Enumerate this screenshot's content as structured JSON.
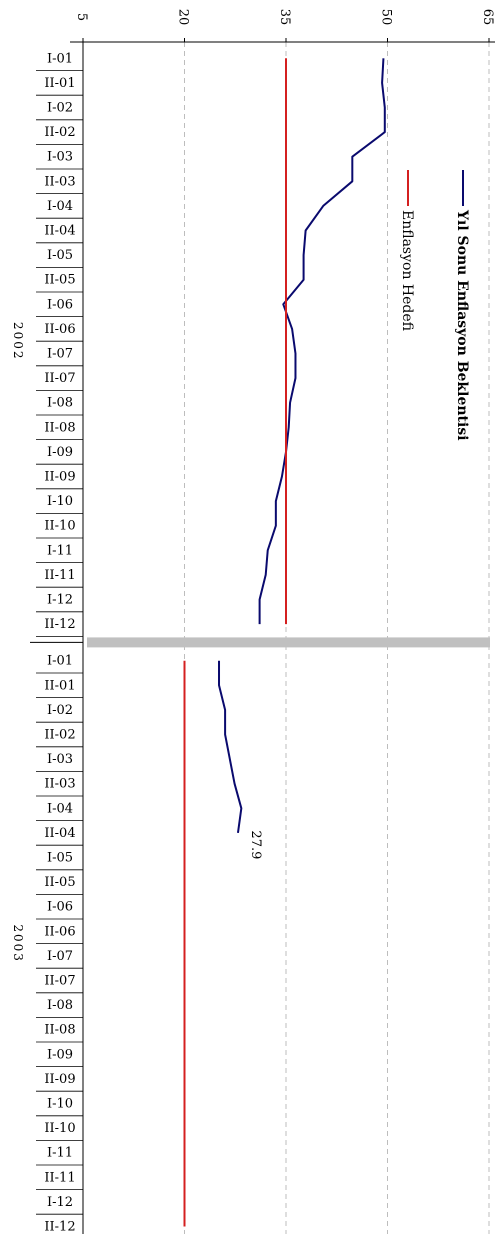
{
  "chart_data": {
    "type": "line",
    "title": "",
    "ylim": [
      5,
      65
    ],
    "y_ticks": [
      "5",
      "20",
      "35",
      "50",
      "65"
    ],
    "gridlines": "dashed",
    "legend_position": "top-right",
    "categories": [
      "I-01",
      "II-01",
      "I-02",
      "II-02",
      "I-03",
      "II-03",
      "I-04",
      "II-04",
      "I-05",
      "II-05",
      "I-06",
      "II-06",
      "I-07",
      "II-07",
      "I-08",
      "II-08",
      "I-09",
      "II-09",
      "I-10",
      "II-10",
      "I-11",
      "II-11",
      "I-12",
      "II-12",
      "I-01",
      "II-01",
      "I-02",
      "II-02",
      "I-03",
      "II-03",
      "I-04",
      "II-04",
      "I-05",
      "II-05",
      "I-06",
      "II-06",
      "I-07",
      "II-07",
      "I-08",
      "II-08",
      "I-09",
      "II-09",
      "I-10",
      "II-10",
      "I-11",
      "II-11",
      "I-12",
      "II-12"
    ],
    "groups": [
      {
        "label": "2002",
        "start": 0,
        "end": 23
      },
      {
        "label": "2003",
        "start": 24,
        "end": 47
      }
    ],
    "series": [
      {
        "name": "Yıl Sonu Enflasyon Beklentisi",
        "color": "#0a0a6e",
        "values": [
          49.4,
          49.2,
          49.6,
          49.6,
          44.8,
          44.8,
          40.5,
          37.9,
          37.6,
          37.6,
          34.6,
          35.9,
          36.4,
          36.4,
          35.6,
          35.4,
          35.0,
          34.4,
          33.5,
          33.5,
          32.3,
          32.0,
          31.1,
          31.1,
          25.1,
          25.1,
          26.0,
          26.0,
          26.7,
          27.4,
          28.4,
          27.9,
          null,
          null,
          null,
          null,
          null,
          null,
          null,
          null,
          null,
          null,
          null,
          null,
          null,
          null,
          null,
          null
        ]
      },
      {
        "name": "Enflasyon Hedefi",
        "color": "#d42020",
        "values": [
          35,
          35,
          35,
          35,
          35,
          35,
          35,
          35,
          35,
          35,
          35,
          35,
          35,
          35,
          35,
          35,
          35,
          35,
          35,
          35,
          35,
          35,
          35,
          35,
          20,
          20,
          20,
          20,
          20,
          20,
          20,
          20,
          20,
          20,
          20,
          20,
          20,
          20,
          20,
          20,
          20,
          20,
          20,
          20,
          20,
          20,
          20,
          20
        ]
      }
    ],
    "annotations": [
      {
        "text": "27.9",
        "category_index": 31,
        "value": 27.9
      }
    ],
    "separator_color": "#c0c0c0"
  }
}
